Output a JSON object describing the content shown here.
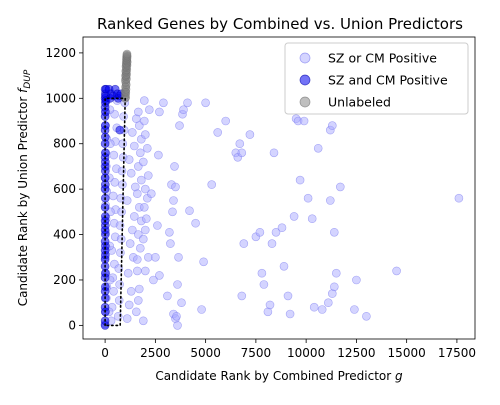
{
  "chart_data": {
    "type": "scatter",
    "title": "Ranked Genes by Combined vs. Union Predictors",
    "xlabel": "Candidate Rank by Combined Predictor",
    "xlabel_symbol": "g",
    "ylabel": "Candidate Rank by Union Predictor",
    "ylabel_symbol": "f",
    "ylabel_subscript": "DUP",
    "xlim": [
      -1100,
      18400
    ],
    "ylim": [
      -60,
      1270
    ],
    "xticks": [
      0,
      2500,
      5000,
      7500,
      10000,
      12500,
      15000,
      17500
    ],
    "yticks": [
      0,
      200,
      400,
      600,
      800,
      1000,
      1200
    ],
    "legend_position": "upper-right",
    "colors": {
      "sz_or_cm": "#aaaaff",
      "sz_and_cm": "#0000ee",
      "unlabeled": "#808080",
      "boundary": "#000000"
    },
    "series": [
      {
        "name": "SZ or CM Positive",
        "points": [
          [
            0,
            5
          ],
          [
            20,
            60
          ],
          [
            60,
            120
          ],
          [
            90,
            170
          ],
          [
            40,
            230
          ],
          [
            10,
            300
          ],
          [
            70,
            340
          ],
          [
            30,
            410
          ],
          [
            50,
            470
          ],
          [
            20,
            530
          ],
          [
            80,
            590
          ],
          [
            10,
            650
          ],
          [
            60,
            700
          ],
          [
            40,
            760
          ],
          [
            90,
            820
          ],
          [
            20,
            880
          ],
          [
            50,
            940
          ],
          [
            70,
            990
          ],
          [
            300,
            20
          ],
          [
            350,
            80
          ],
          [
            420,
            150
          ],
          [
            380,
            210
          ],
          [
            460,
            270
          ],
          [
            330,
            330
          ],
          [
            500,
            390
          ],
          [
            450,
            450
          ],
          [
            520,
            510
          ],
          [
            400,
            570
          ],
          [
            480,
            630
          ],
          [
            560,
            690
          ],
          [
            430,
            750
          ],
          [
            510,
            810
          ],
          [
            580,
            870
          ],
          [
            470,
            930
          ],
          [
            600,
            990
          ],
          [
            650,
            40
          ],
          [
            700,
            110
          ],
          [
            720,
            180
          ],
          [
            680,
            250
          ],
          [
            760,
            320
          ],
          [
            800,
            380
          ],
          [
            740,
            440
          ],
          [
            820,
            500
          ],
          [
            780,
            560
          ],
          [
            860,
            620
          ],
          [
            840,
            680
          ],
          [
            900,
            740
          ],
          [
            880,
            800
          ],
          [
            950,
            860
          ],
          [
            920,
            920
          ],
          [
            980,
            980
          ],
          [
            200,
            60
          ],
          [
            250,
            200
          ],
          [
            230,
            350
          ],
          [
            270,
            500
          ],
          [
            210,
            650
          ],
          [
            260,
            800
          ],
          [
            240,
            950
          ],
          [
            1100,
            30
          ],
          [
            1200,
            90
          ],
          [
            1300,
            150
          ],
          [
            1150,
            230
          ],
          [
            1400,
            300
          ],
          [
            1250,
            360
          ],
          [
            1350,
            420
          ],
          [
            1450,
            480
          ],
          [
            1100,
            550
          ],
          [
            1500,
            610
          ],
          [
            1300,
            670
          ],
          [
            1200,
            730
          ],
          [
            1450,
            790
          ],
          [
            1350,
            850
          ],
          [
            1550,
            910
          ],
          [
            1600,
            240
          ],
          [
            1550,
            60
          ],
          [
            1650,
            110
          ],
          [
            1700,
            160
          ],
          [
            1600,
            290
          ],
          [
            1750,
            340
          ],
          [
            1650,
            400
          ],
          [
            1800,
            460
          ],
          [
            1700,
            520
          ],
          [
            1600,
            580
          ],
          [
            1800,
            640
          ],
          [
            1650,
            700
          ],
          [
            1750,
            760
          ],
          [
            1800,
            820
          ],
          [
            1700,
            880
          ],
          [
            1650,
            940
          ],
          [
            1900,
            380
          ],
          [
            2000,
            420
          ],
          [
            2050,
            470
          ],
          [
            1950,
            520
          ],
          [
            2100,
            560
          ],
          [
            2000,
            600
          ],
          [
            2150,
            660
          ],
          [
            1900,
            720
          ],
          [
            2100,
            780
          ],
          [
            2000,
            840
          ],
          [
            1950,
            900
          ],
          [
            2200,
            950
          ],
          [
            1950,
            990
          ],
          [
            1900,
            20
          ],
          [
            2000,
            240
          ],
          [
            2150,
            300
          ],
          [
            2400,
            200
          ],
          [
            2300,
            580
          ],
          [
            2600,
            440
          ],
          [
            2700,
            220
          ],
          [
            2500,
            300
          ],
          [
            2650,
            750
          ],
          [
            2700,
            940
          ],
          [
            2900,
            980
          ],
          [
            3100,
            130
          ],
          [
            3200,
            410
          ],
          [
            3250,
            360
          ],
          [
            3300,
            620
          ],
          [
            3400,
            550
          ],
          [
            3350,
            500
          ],
          [
            3500,
            610
          ],
          [
            3450,
            700
          ],
          [
            3400,
            50
          ],
          [
            3500,
            30
          ],
          [
            3550,
            40
          ],
          [
            3600,
            0
          ],
          [
            3600,
            180
          ],
          [
            3650,
            300
          ],
          [
            3700,
            880
          ],
          [
            3800,
            100
          ],
          [
            3850,
            930
          ],
          [
            3900,
            950
          ],
          [
            4100,
            980
          ],
          [
            4200,
            505
          ],
          [
            4500,
            450
          ],
          [
            4800,
            70
          ],
          [
            4900,
            280
          ],
          [
            5000,
            980
          ],
          [
            5300,
            620
          ],
          [
            5600,
            850
          ],
          [
            6000,
            900
          ],
          [
            6500,
            760
          ],
          [
            6600,
            740
          ],
          [
            6700,
            800
          ],
          [
            6800,
            760
          ],
          [
            6800,
            130
          ],
          [
            6900,
            360
          ],
          [
            7200,
            840
          ],
          [
            7500,
            390
          ],
          [
            7700,
            410
          ],
          [
            7800,
            230
          ],
          [
            7900,
            180
          ],
          [
            8100,
            60
          ],
          [
            8200,
            90
          ],
          [
            8300,
            360
          ],
          [
            8400,
            760
          ],
          [
            8500,
            410
          ],
          [
            8800,
            430
          ],
          [
            8900,
            260
          ],
          [
            9100,
            130
          ],
          [
            9200,
            50
          ],
          [
            9400,
            480
          ],
          [
            9500,
            910
          ],
          [
            9600,
            900
          ],
          [
            9700,
            640
          ],
          [
            9900,
            900
          ],
          [
            10100,
            560
          ],
          [
            10300,
            470
          ],
          [
            10400,
            80
          ],
          [
            10600,
            780
          ],
          [
            10800,
            70
          ],
          [
            11100,
            100
          ],
          [
            11200,
            550
          ],
          [
            11200,
            860
          ],
          [
            11300,
            880
          ],
          [
            11300,
            140
          ],
          [
            11400,
            410
          ],
          [
            11400,
            170
          ],
          [
            11500,
            230
          ],
          [
            11700,
            610
          ],
          [
            12400,
            70
          ],
          [
            12500,
            200
          ],
          [
            13000,
            40
          ],
          [
            14500,
            240
          ],
          [
            17600,
            560
          ]
        ]
      },
      {
        "name": "SZ and CM Positive",
        "points": [
          [
            0,
            0
          ],
          [
            0,
            20
          ],
          [
            10,
            60
          ],
          [
            0,
            80
          ],
          [
            10,
            120
          ],
          [
            0,
            150
          ],
          [
            10,
            170
          ],
          [
            0,
            210
          ],
          [
            10,
            230
          ],
          [
            0,
            260
          ],
          [
            0,
            290
          ],
          [
            10,
            310
          ],
          [
            0,
            330
          ],
          [
            10,
            350
          ],
          [
            0,
            370
          ],
          [
            10,
            400
          ],
          [
            0,
            420
          ],
          [
            10,
            440
          ],
          [
            0,
            460
          ],
          [
            10,
            480
          ],
          [
            0,
            520
          ],
          [
            10,
            560
          ],
          [
            0,
            600
          ],
          [
            10,
            620
          ],
          [
            0,
            650
          ],
          [
            10,
            680
          ],
          [
            0,
            700
          ],
          [
            10,
            720
          ],
          [
            0,
            740
          ],
          [
            10,
            760
          ],
          [
            0,
            800
          ],
          [
            10,
            830
          ],
          [
            0,
            860
          ],
          [
            10,
            880
          ],
          [
            0,
            920
          ],
          [
            10,
            940
          ],
          [
            0,
            960
          ],
          [
            10,
            980
          ],
          [
            0,
            1000
          ],
          [
            10,
            1020
          ],
          [
            0,
            1040
          ],
          [
            20,
            1010
          ],
          [
            30,
            990
          ],
          [
            50,
            1040
          ],
          [
            200,
            1040
          ],
          [
            250,
            1000
          ],
          [
            300,
            1020
          ],
          [
            400,
            1010
          ],
          [
            500,
            1040
          ],
          [
            600,
            1020
          ],
          [
            650,
            1000
          ],
          [
            700,
            1010
          ],
          [
            730,
            860
          ],
          [
            800,
            1020
          ]
        ]
      },
      {
        "name": "Unlabeled",
        "points": [
          [
            1000,
            1000
          ],
          [
            1020,
            1005
          ],
          [
            1010,
            1015
          ],
          [
            1030,
            1025
          ],
          [
            1000,
            1030
          ],
          [
            1040,
            1040
          ],
          [
            1020,
            1050
          ],
          [
            1050,
            1060
          ],
          [
            1030,
            1070
          ],
          [
            1010,
            1080
          ],
          [
            1060,
            1085
          ],
          [
            1040,
            1095
          ],
          [
            1020,
            1100
          ],
          [
            1070,
            1105
          ],
          [
            1050,
            1115
          ],
          [
            1030,
            1120
          ],
          [
            1080,
            1125
          ],
          [
            1060,
            1135
          ],
          [
            1040,
            1140
          ],
          [
            1090,
            1145
          ],
          [
            1070,
            1150
          ],
          [
            1050,
            1155
          ],
          [
            1100,
            1160
          ],
          [
            1080,
            1165
          ],
          [
            1060,
            1170
          ],
          [
            1090,
            1175
          ],
          [
            1070,
            1180
          ],
          [
            1100,
            1185
          ],
          [
            1080,
            1190
          ],
          [
            1090,
            1195
          ]
        ]
      }
    ]
  }
}
